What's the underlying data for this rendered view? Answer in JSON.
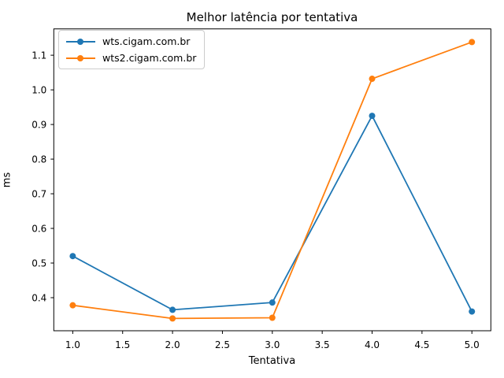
{
  "chart_data": {
    "type": "line",
    "title": "Melhor latência por tentativa",
    "xlabel": "Tentativa",
    "ylabel": "ms",
    "x": [
      1.0,
      2.0,
      3.0,
      4.0,
      5.0
    ],
    "series": [
      {
        "name": "wts.cigam.com.br",
        "color": "#1f77b4",
        "values": [
          0.52,
          0.365,
          0.386,
          0.925,
          0.36
        ]
      },
      {
        "name": "wts2.cigam.com.br",
        "color": "#ff7f0e",
        "values": [
          0.378,
          0.34,
          0.342,
          1.032,
          1.138
        ]
      }
    ],
    "xlim": [
      0.81,
      5.19
    ],
    "ylim": [
      0.3045,
      1.176
    ],
    "x_tick_values": [
      1.0,
      1.5,
      2.0,
      2.5,
      3.0,
      3.5,
      4.0,
      4.5,
      5.0
    ],
    "y_tick_values": [
      0.4,
      0.5,
      0.6,
      0.7,
      0.8,
      0.9,
      1.0,
      1.1
    ],
    "grid": false,
    "legend_position": "upper left",
    "line_width": 1.8,
    "marker": "circle",
    "marker_radius": 4,
    "spine_color": "#000000",
    "background_color": "#ffffff"
  }
}
